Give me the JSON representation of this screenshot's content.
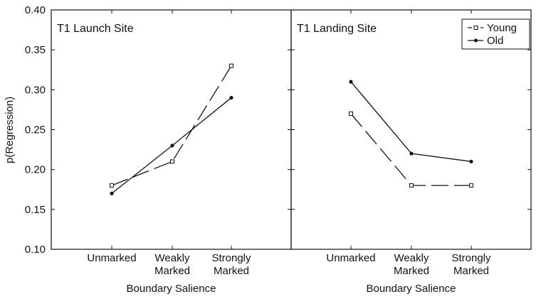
{
  "ylabel": "p(Regression)",
  "chart_data": [
    {
      "type": "line",
      "title": "T1 Launch Site",
      "xlabel": "Boundary Salience",
      "ylabel": "p(Regression)",
      "categories": [
        [
          "Unmarked"
        ],
        [
          "Weakly",
          "Marked"
        ],
        [
          "Strongly",
          "Marked"
        ]
      ],
      "ylim": [
        0.1,
        0.4
      ],
      "yticks": [
        "0.10",
        "0.15",
        "0.20",
        "0.25",
        "0.30",
        "0.35",
        "0.40"
      ],
      "grid": false,
      "series": [
        {
          "name": "Young",
          "values": [
            0.18,
            0.21,
            0.33
          ],
          "dash": "dashed",
          "marker": "open-square",
          "color": "#111111"
        },
        {
          "name": "Old",
          "values": [
            0.17,
            0.23,
            0.29
          ],
          "dash": "solid",
          "marker": "filled-circle",
          "color": "#111111"
        }
      ]
    },
    {
      "type": "line",
      "title": "T1 Landing Site",
      "xlabel": "Boundary Salience",
      "categories": [
        [
          "Unmarked"
        ],
        [
          "Weakly",
          "Marked"
        ],
        [
          "Strongly",
          "Marked"
        ]
      ],
      "ylim": [
        0.1,
        0.4
      ],
      "grid": false,
      "legend": {
        "position": "top-right",
        "entries": [
          "Young",
          "Old"
        ]
      },
      "series": [
        {
          "name": "Young",
          "values": [
            0.27,
            0.18,
            0.18
          ],
          "dash": "dashed",
          "marker": "open-square",
          "color": "#111111"
        },
        {
          "name": "Old",
          "values": [
            0.31,
            0.22,
            0.21
          ],
          "dash": "solid",
          "marker": "filled-circle",
          "color": "#111111"
        }
      ]
    }
  ]
}
